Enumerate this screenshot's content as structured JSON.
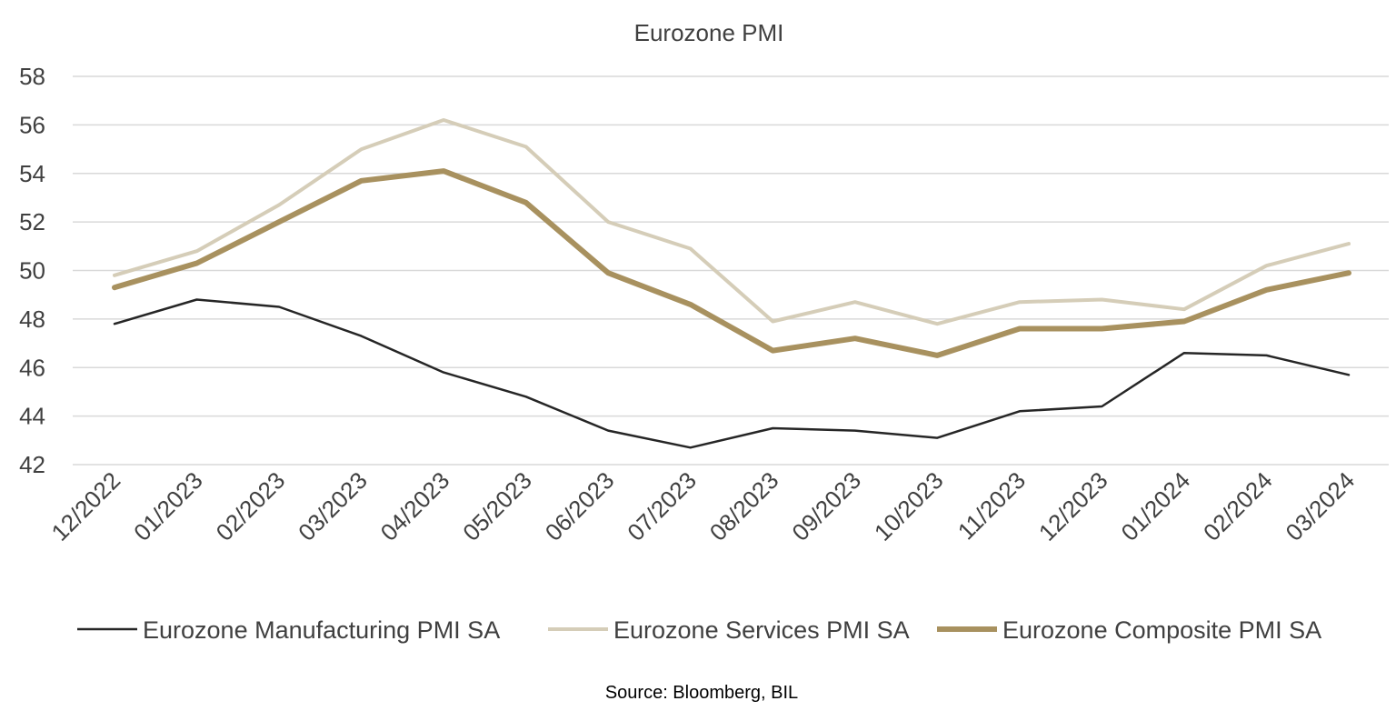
{
  "chart_data": {
    "type": "line",
    "title": "Eurozone PMI",
    "source": "Source: Bloomberg, BIL",
    "categories": [
      "12/2022",
      "01/2023",
      "02/2023",
      "03/2023",
      "04/2023",
      "05/2023",
      "06/2023",
      "07/2023",
      "08/2023",
      "09/2023",
      "10/2023",
      "11/2023",
      "12/2023",
      "01/2024",
      "02/2024",
      "03/2024"
    ],
    "ylim": [
      42,
      58
    ],
    "yticks": [
      42,
      44,
      46,
      48,
      50,
      52,
      54,
      56,
      58
    ],
    "grid": true,
    "legend_position": "bottom",
    "series": [
      {
        "name": "Eurozone Manufacturing PMI SA",
        "color": "#262626",
        "values": [
          47.8,
          48.8,
          48.5,
          47.3,
          45.8,
          44.8,
          43.4,
          42.7,
          43.5,
          43.4,
          43.1,
          44.2,
          44.4,
          46.6,
          46.5,
          45.7
        ]
      },
      {
        "name": "Eurozone Services PMI SA",
        "color": "#D5CDB8",
        "values": [
          49.8,
          50.8,
          52.7,
          55.0,
          56.2,
          55.1,
          52.0,
          50.9,
          47.9,
          48.7,
          47.8,
          48.7,
          48.8,
          48.4,
          50.2,
          51.1
        ]
      },
      {
        "name": "Eurozone Composite PMI SA",
        "color": "#A8915F",
        "values": [
          49.3,
          50.3,
          52.0,
          53.7,
          54.1,
          52.8,
          49.9,
          48.6,
          46.7,
          47.2,
          46.5,
          47.6,
          47.6,
          47.9,
          49.2,
          49.9
        ]
      }
    ]
  }
}
